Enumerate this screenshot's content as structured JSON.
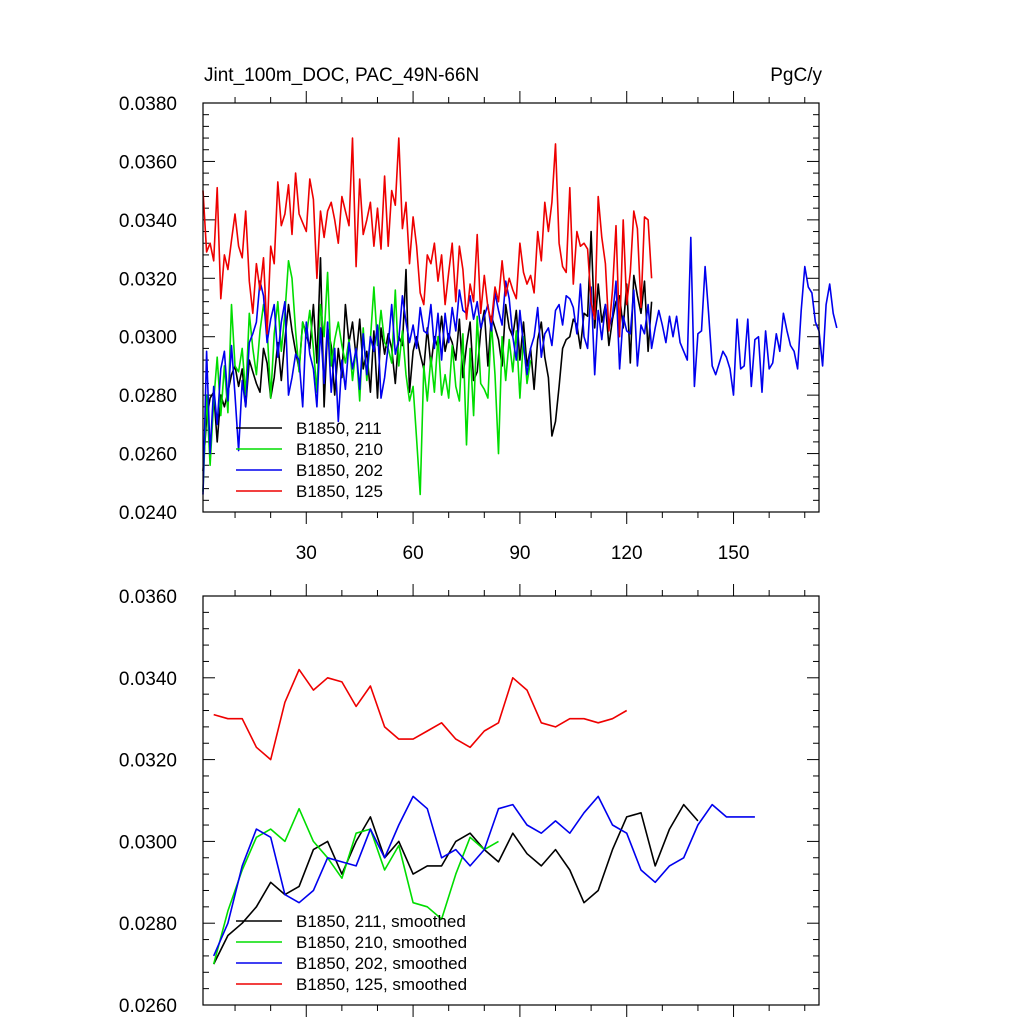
{
  "chart_data": [
    {
      "type": "line",
      "title": "Jint_100m_DOC, PAC_49N-66N",
      "units": "PgC/y",
      "xlim": [
        1,
        174
      ],
      "ylim": [
        0.024,
        0.038
      ],
      "xticks": [
        30,
        60,
        90,
        120,
        150
      ],
      "xtick_labels": [
        "30",
        "60",
        "90",
        "120",
        "150"
      ],
      "yticks": [
        0.024,
        0.026,
        0.028,
        0.03,
        0.032,
        0.034,
        0.036,
        0.038
      ],
      "ytick_labels": [
        "0.0240",
        "0.0260",
        "0.0280",
        "0.0300",
        "0.0320",
        "0.0340",
        "0.0360",
        "0.0380"
      ],
      "legend_position": "bottom-left",
      "series": [
        {
          "name": "B1850, 211",
          "color": "#000000",
          "values": [
            0.0254,
            0.0272,
            0.0279,
            0.0281,
            0.0264,
            0.028,
            0.0276,
            0.0281,
            0.0287,
            0.029,
            0.0283,
            0.0289,
            0.0276,
            0.0292,
            0.0288,
            0.0284,
            0.0281,
            0.0296,
            0.0291,
            0.0279,
            0.0286,
            0.0298,
            0.0285,
            0.0299,
            0.0311,
            0.0302,
            0.0295,
            0.0289,
            0.0305,
            0.0301,
            0.0296,
            0.0311,
            0.0291,
            0.0327,
            0.0276,
            0.0303,
            0.0297,
            0.028,
            0.0296,
            0.0286,
            0.0311,
            0.0298,
            0.0305,
            0.0293,
            0.0306,
            0.0289,
            0.0295,
            0.0281,
            0.0302,
            0.0279,
            0.0303,
            0.0294,
            0.0301,
            0.0296,
            0.0284,
            0.03,
            0.0297,
            0.0323,
            0.0281,
            0.0295,
            0.03,
            0.0294,
            0.0289,
            0.0303,
            0.029,
            0.03,
            0.0296,
            0.0307,
            0.0295,
            0.0301,
            0.0298,
            0.0292,
            0.0306,
            0.0286,
            0.0297,
            0.0305,
            0.0285,
            0.0288,
            0.0302,
            0.0309,
            0.029,
            0.0307,
            0.0303,
            0.0299,
            0.029,
            0.0311,
            0.0303,
            0.03,
            0.0309,
            0.0292,
            0.0305,
            0.029,
            0.0296,
            0.0282,
            0.0299,
            0.0305,
            0.0293,
            0.0286,
            0.0266,
            0.0271,
            0.0283,
            0.0296,
            0.0299,
            0.03,
            0.0306,
            0.0304,
            0.0296,
            0.0308,
            0.0307,
            0.0336,
            0.0303,
            0.0318,
            0.0305,
            0.0311,
            0.0297,
            0.0306,
            0.0312,
            0.0314,
            0.0303,
            0.0318,
            0.0291,
            0.0321,
            0.0314,
            0.0308,
            0.0319,
            0.0295,
            0.0312
          ]
        },
        {
          "name": "B1850, 210",
          "color": "#00dd00",
          "values": [
            0.0247,
            0.028,
            0.0256,
            0.0278,
            0.0293,
            0.0273,
            0.029,
            0.0274,
            0.0311,
            0.029,
            0.0288,
            0.0296,
            0.028,
            0.0308,
            0.0296,
            0.0287,
            0.0302,
            0.0311,
            0.0303,
            0.0279,
            0.0301,
            0.0312,
            0.0295,
            0.0308,
            0.0326,
            0.032,
            0.0302,
            0.0288,
            0.0305,
            0.03,
            0.0309,
            0.0296,
            0.0281,
            0.0311,
            0.03,
            0.0322,
            0.029,
            0.0299,
            0.0305,
            0.0297,
            0.0291,
            0.0299,
            0.0285,
            0.0296,
            0.0278,
            0.0303,
            0.0285,
            0.0299,
            0.0317,
            0.0297,
            0.0309,
            0.0298,
            0.0296,
            0.0291,
            0.0316,
            0.029,
            0.0302,
            0.0287,
            0.0278,
            0.0283,
            0.0265,
            0.0246,
            0.029,
            0.0278,
            0.0293,
            0.0281,
            0.03,
            0.028,
            0.0287,
            0.0279,
            0.0297,
            0.0283,
            0.0278,
            0.0301,
            0.0263,
            0.0296,
            0.0273,
            0.0307,
            0.0284,
            0.0282,
            0.0279,
            0.0305,
            0.0287,
            0.026,
            0.03,
            0.0285,
            0.0299,
            0.0288,
            0.0302,
            0.0279,
            0.03,
            0.0284,
            0.0292
          ]
        },
        {
          "name": "B1850, 202",
          "color": "#0000ee",
          "values": [
            0.0246,
            0.0295,
            0.026,
            0.0283,
            0.027,
            0.0289,
            0.0295,
            0.0278,
            0.0297,
            0.028,
            0.0261,
            0.0285,
            0.0276,
            0.0298,
            0.0301,
            0.0305,
            0.0319,
            0.0314,
            0.0298,
            0.0306,
            0.0311,
            0.0293,
            0.0305,
            0.0312,
            0.028,
            0.0286,
            0.0294,
            0.0292,
            0.0276,
            0.0305,
            0.0294,
            0.0289,
            0.0276,
            0.0303,
            0.0284,
            0.0305,
            0.0281,
            0.0296,
            0.0271,
            0.0292,
            0.0282,
            0.0298,
            0.0289,
            0.0296,
            0.0282,
            0.0301,
            0.0287,
            0.03,
            0.0295,
            0.0304,
            0.0279,
            0.0286,
            0.0297,
            0.0311,
            0.0294,
            0.0299,
            0.0314,
            0.0305,
            0.0298,
            0.0304,
            0.0296,
            0.031,
            0.0302,
            0.0301,
            0.0311,
            0.0296,
            0.0308,
            0.0292,
            0.0308,
            0.0298,
            0.031,
            0.0302,
            0.0316,
            0.0309,
            0.0308,
            0.0314,
            0.0306,
            0.0312,
            0.0303,
            0.0307,
            0.0311,
            0.0302,
            0.0315,
            0.0309,
            0.0304,
            0.0319,
            0.0313,
            0.03,
            0.0292,
            0.0309,
            0.0297,
            0.0287,
            0.0296,
            0.03,
            0.031,
            0.0293,
            0.0301,
            0.0303,
            0.0297,
            0.0309,
            0.0311,
            0.0304,
            0.0314,
            0.0313,
            0.031,
            0.0301,
            0.0318,
            0.03,
            0.0296,
            0.0317,
            0.0287,
            0.0309,
            0.0299,
            0.0311,
            0.0303,
            0.0307,
            0.0319,
            0.0289,
            0.0307,
            0.0302,
            0.0301,
            0.0316,
            0.029,
            0.0304,
            0.0301,
            0.0311,
            0.0296,
            0.0303,
            0.0309,
            0.0304,
            0.0298,
            0.0307,
            0.03,
            0.0307,
            0.0298,
            0.0295,
            0.0292,
            0.0334,
            0.0283,
            0.0301,
            0.0302,
            0.0324,
            0.0308,
            0.029,
            0.0287,
            0.0291,
            0.0295,
            0.0293,
            0.0289,
            0.028,
            0.0306,
            0.0289,
            0.029,
            0.0306,
            0.0283,
            0.0299,
            0.03,
            0.0281,
            0.0302,
            0.0289,
            0.0291,
            0.0301,
            0.0295,
            0.0308,
            0.0302,
            0.0297,
            0.0295,
            0.0289,
            0.0309,
            0.0324,
            0.0317,
            0.0315,
            0.0305,
            0.0302,
            0.029,
            0.0311,
            0.0318,
            0.0308,
            0.0303
          ]
        },
        {
          "name": "B1850, 125",
          "color": "#ee0000",
          "values": [
            0.035,
            0.0329,
            0.0332,
            0.0326,
            0.0351,
            0.0313,
            0.0328,
            0.0323,
            0.0333,
            0.0342,
            0.0331,
            0.0327,
            0.0343,
            0.0319,
            0.0308,
            0.0325,
            0.0316,
            0.0327,
            0.0301,
            0.0331,
            0.0325,
            0.0353,
            0.0338,
            0.0342,
            0.0352,
            0.0335,
            0.0356,
            0.0342,
            0.0339,
            0.0336,
            0.0354,
            0.0347,
            0.032,
            0.0343,
            0.0334,
            0.0343,
            0.0346,
            0.034,
            0.0332,
            0.0348,
            0.0343,
            0.0338,
            0.0368,
            0.0324,
            0.0354,
            0.0335,
            0.034,
            0.0346,
            0.0331,
            0.0344,
            0.033,
            0.0355,
            0.0331,
            0.035,
            0.0345,
            0.0368,
            0.0337,
            0.0346,
            0.0325,
            0.0341,
            0.0331,
            0.0315,
            0.0311,
            0.0328,
            0.0325,
            0.0332,
            0.0319,
            0.0328,
            0.0311,
            0.0322,
            0.0332,
            0.0312,
            0.0331,
            0.0323,
            0.0306,
            0.0318,
            0.0312,
            0.0335,
            0.0308,
            0.0321,
            0.031,
            0.0305,
            0.0317,
            0.0312,
            0.0326,
            0.0314,
            0.032,
            0.0316,
            0.0313,
            0.0332,
            0.0322,
            0.0318,
            0.0321,
            0.0315,
            0.0336,
            0.0326,
            0.0346,
            0.0336,
            0.0346,
            0.0366,
            0.0332,
            0.0324,
            0.0322,
            0.0351,
            0.0318,
            0.0336,
            0.0331,
            0.0332,
            0.033,
            0.0312,
            0.0306,
            0.0348,
            0.0334,
            0.0325,
            0.0302,
            0.0316,
            0.0338,
            0.03,
            0.034,
            0.0311,
            0.0322,
            0.0343,
            0.0337,
            0.031,
            0.0341,
            0.034,
            0.032
          ]
        }
      ]
    },
    {
      "type": "line",
      "title": "",
      "xlim": [
        1,
        174
      ],
      "ylim": [
        0.026,
        0.036
      ],
      "xticks": [
        30,
        60,
        90,
        120,
        150
      ],
      "yticks": [
        0.026,
        0.028,
        0.03,
        0.032,
        0.034,
        0.036
      ],
      "ytick_labels": [
        "0.0260",
        "0.0280",
        "0.0300",
        "0.0320",
        "0.0340",
        "0.0360"
      ],
      "legend_position": "bottom-left",
      "series": [
        {
          "name": "B1850, 211, smoothed",
          "color": "#000000",
          "x_start": 4,
          "x_step": 4,
          "values": [
            0.027,
            0.0277,
            0.028,
            0.0284,
            0.029,
            0.0287,
            0.0289,
            0.0298,
            0.03,
            0.0292,
            0.03,
            0.0306,
            0.0296,
            0.03,
            0.0292,
            0.0294,
            0.0294,
            0.03,
            0.0302,
            0.0298,
            0.0295,
            0.0302,
            0.0297,
            0.0294,
            0.0298,
            0.0293,
            0.0285,
            0.0288,
            0.0298,
            0.0306,
            0.0307,
            0.0294,
            0.0303,
            0.0309,
            0.0305
          ]
        },
        {
          "name": "B1850, 210, smoothed",
          "color": "#00dd00",
          "x_start": 4,
          "x_step": 4,
          "values": [
            0.027,
            0.0283,
            0.0293,
            0.0301,
            0.0303,
            0.03,
            0.0308,
            0.03,
            0.0296,
            0.0291,
            0.0302,
            0.0303,
            0.0293,
            0.0299,
            0.0285,
            0.0284,
            0.0281,
            0.0292,
            0.0301,
            0.0298,
            0.03
          ]
        },
        {
          "name": "B1850, 202, smoothed",
          "color": "#0000ee",
          "x_start": 4,
          "x_step": 4,
          "values": [
            0.0272,
            0.028,
            0.0294,
            0.0303,
            0.0301,
            0.0287,
            0.0285,
            0.0288,
            0.0296,
            0.0295,
            0.0294,
            0.0303,
            0.0296,
            0.0304,
            0.0311,
            0.0308,
            0.0296,
            0.0298,
            0.0294,
            0.0298,
            0.0308,
            0.0309,
            0.0304,
            0.0302,
            0.0305,
            0.0302,
            0.0307,
            0.0311,
            0.0304,
            0.0302,
            0.0293,
            0.029,
            0.0294,
            0.0296,
            0.0304,
            0.0309,
            0.0306,
            0.0306,
            0.0306
          ]
        },
        {
          "name": "B1850, 125, smoothed",
          "color": "#ee0000",
          "x_start": 4,
          "x_step": 4,
          "values": [
            0.0331,
            0.033,
            0.033,
            0.0323,
            0.032,
            0.0334,
            0.0342,
            0.0337,
            0.034,
            0.0339,
            0.0333,
            0.0338,
            0.0328,
            0.0325,
            0.0325,
            0.0327,
            0.0329,
            0.0325,
            0.0323,
            0.0327,
            0.0329,
            0.034,
            0.0337,
            0.0329,
            0.0328,
            0.033,
            0.033,
            0.0329,
            0.033,
            0.0332
          ]
        }
      ]
    }
  ]
}
